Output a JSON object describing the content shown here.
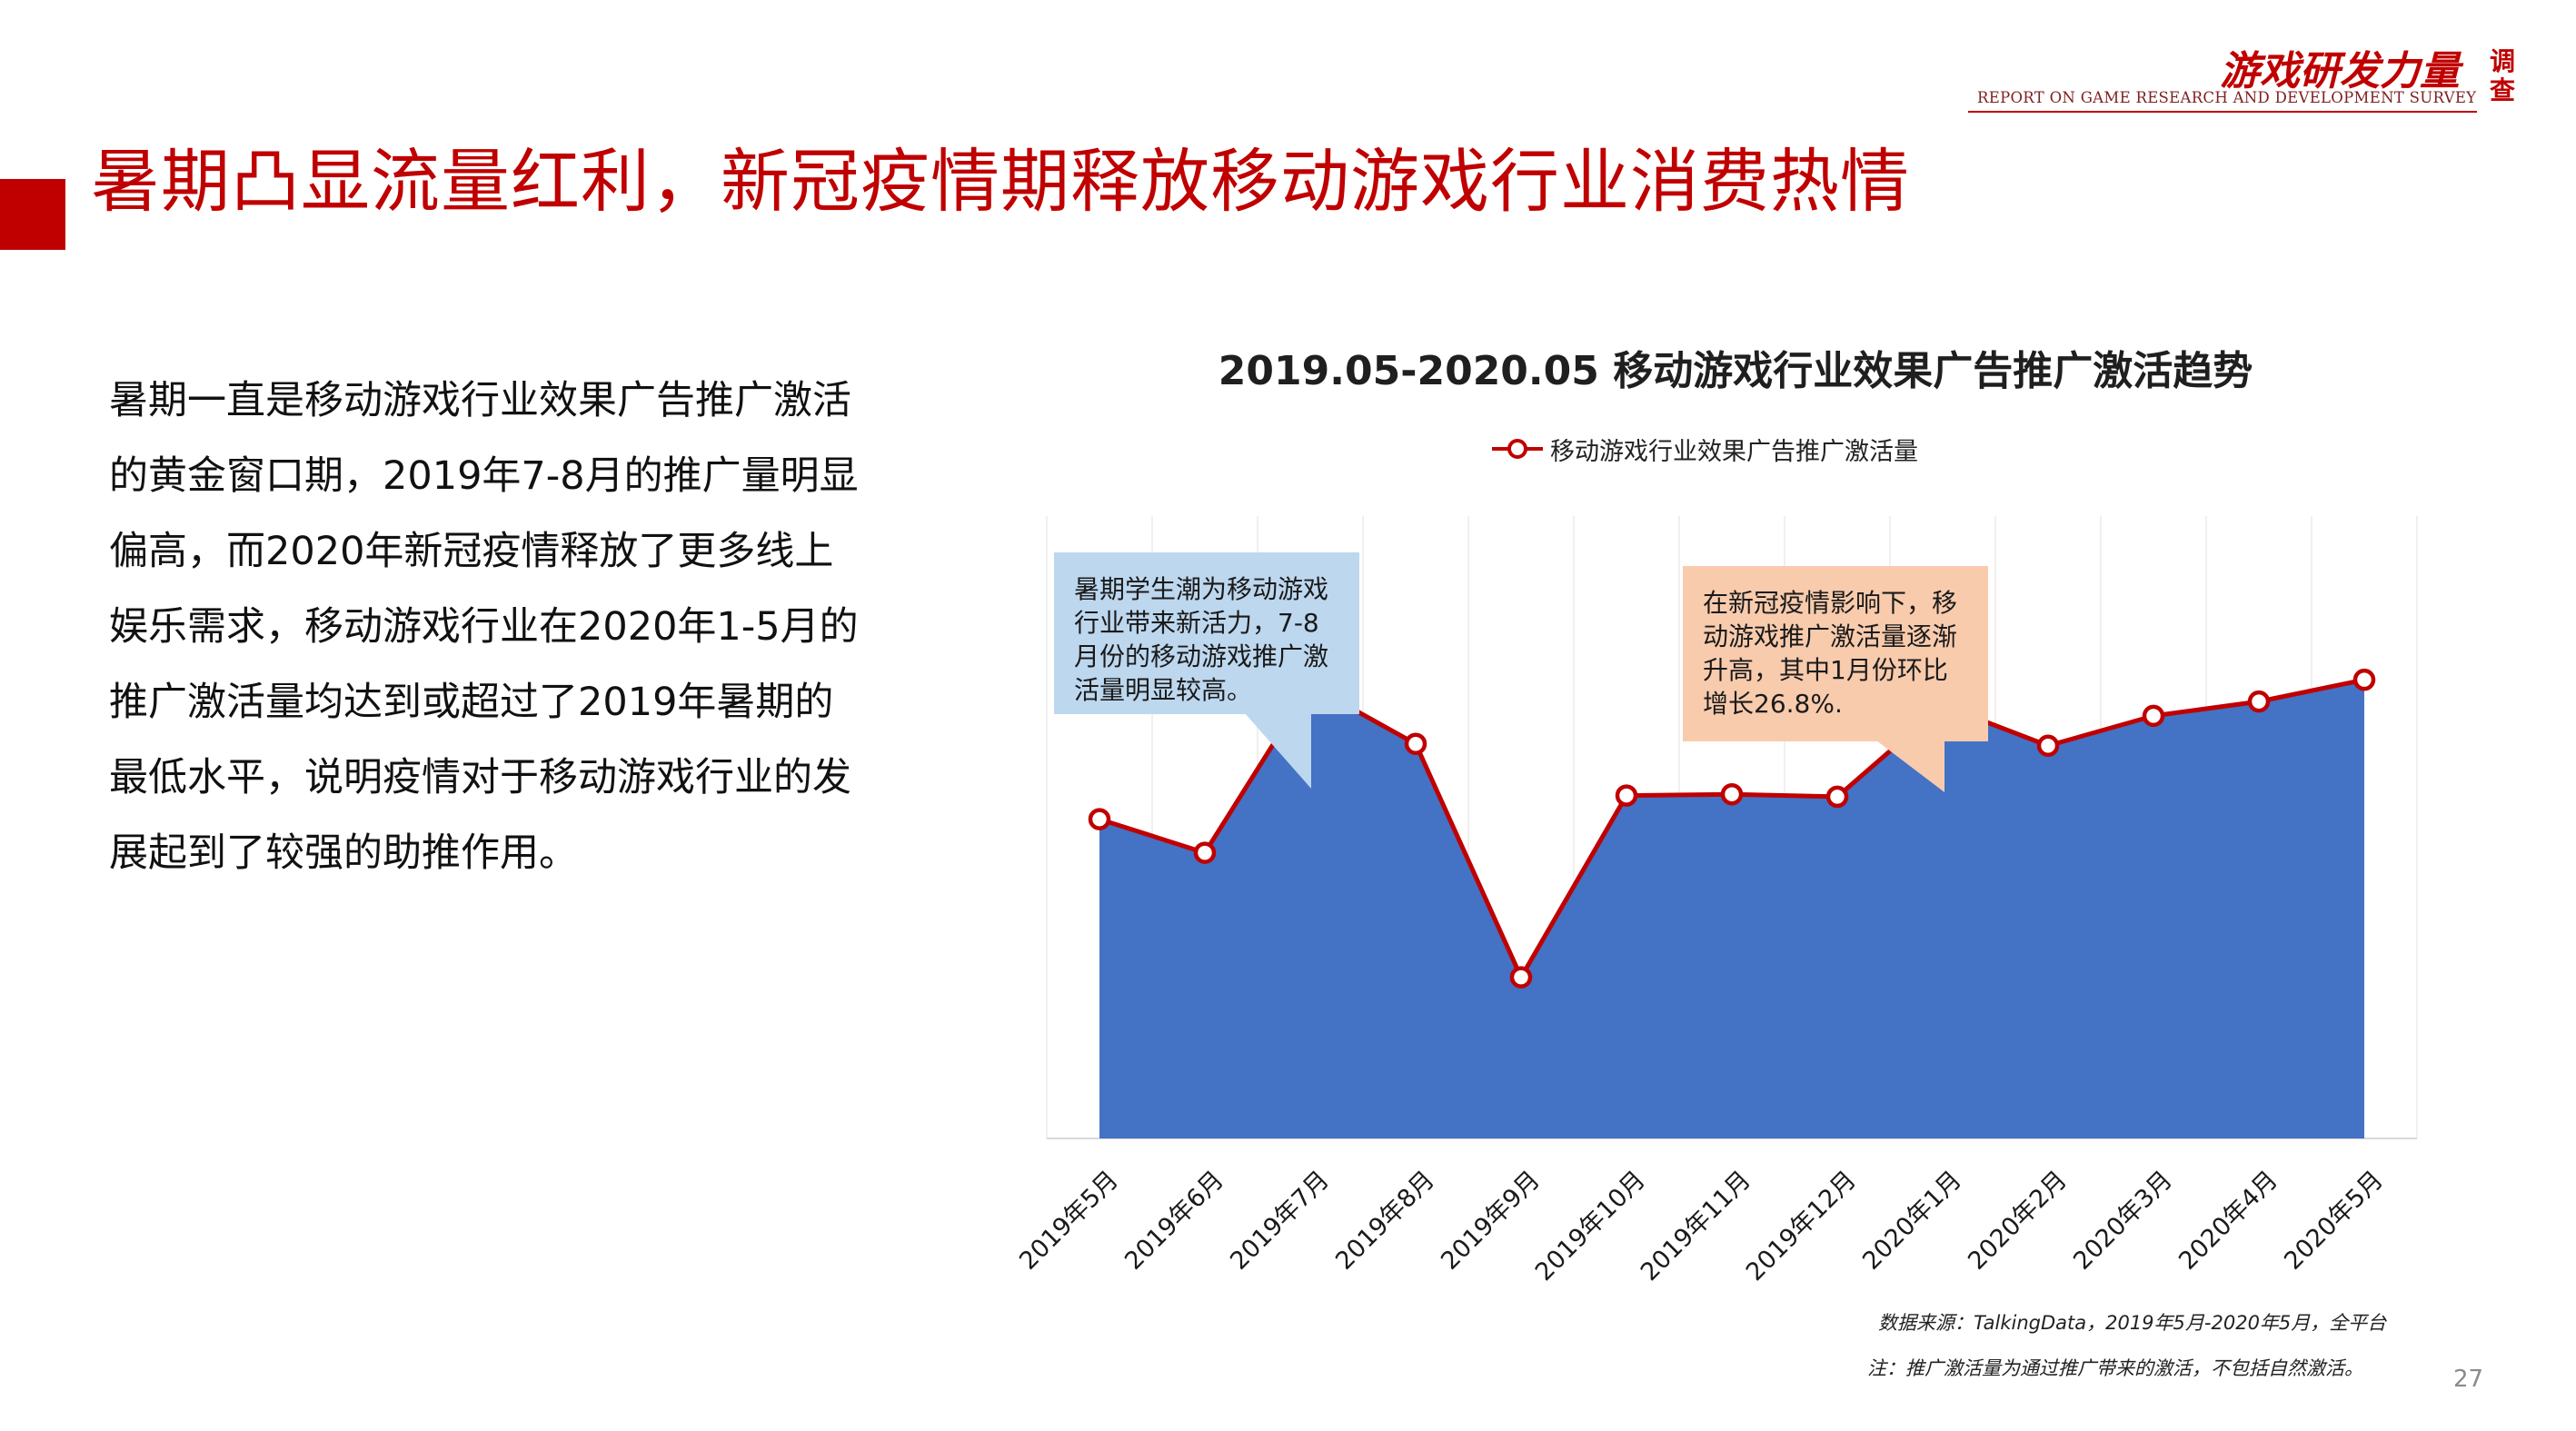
{
  "header": {
    "title": "暑期凸显流量红利，新冠疫情期释放移动游戏行业消费热情",
    "logo_cn": "游戏研发力量",
    "logo_cn_side": "调查",
    "logo_en": "REPORT ON GAME RESEARCH AND DEVELOPMENT SURVEY",
    "accent_color": "#c00000"
  },
  "body": {
    "paragraph": "暑期一直是移动游戏行业效果广告推广激活的黄金窗口期，2019年7-8月的推广量明显偏高，而2020年新冠疫情释放了更多线上娱乐需求，移动游戏行业在2020年1-5月的推广激活量均达到或超过了2019年暑期的最低水平，说明疫情对于移动游戏行业的发展起到了较强的助推作用。"
  },
  "callouts": {
    "summer": "暑期学生潮为移动游戏行业带来新活力，7-8月份的移动游戏推广激活量明显较高。",
    "covid": "在新冠疫情影响下，移动游戏推广激活量逐渐升高，其中1月份环比增长26.8%."
  },
  "footnotes": {
    "source": "数据来源：TalkingData，2019年5月-2020年5月，全平台",
    "note": "注：推广激活量为通过推广带来的激活，不包括自然激活。"
  },
  "page_number": "27",
  "chart_data": {
    "type": "area",
    "title": "2019.05-2020.05  移动游戏行业效果广告推广激活趋势",
    "xlabel": "",
    "ylabel": "",
    "categories": [
      "2019年5月",
      "2019年6月",
      "2019年7月",
      "2019年8月",
      "2019年9月",
      "2019年10月",
      "2019年11月",
      "2019年12月",
      "2020年1月",
      "2020年2月",
      "2020年3月",
      "2020年4月",
      "2020年5月"
    ],
    "series": [
      {
        "name": "移动游戏行业效果广告推广激活量",
        "values": [
          51.3,
          45.9,
          72.8,
          63.4,
          25.9,
          55.1,
          55.3,
          54.9,
          69.6,
          63.1,
          67.9,
          70.2,
          73.7
        ],
        "fill_color": "#4472c4",
        "line_color": "#c00000"
      }
    ],
    "ylim": [
      0,
      100
    ],
    "y_axis_visible": false,
    "grid": true,
    "legend_position": "top"
  }
}
